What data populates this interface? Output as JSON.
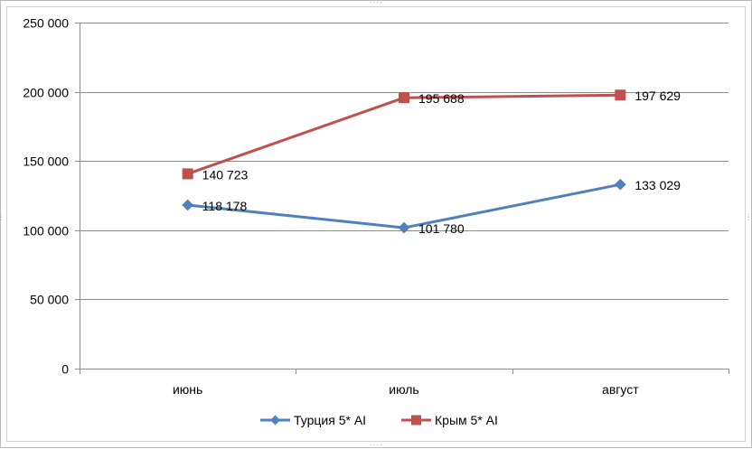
{
  "chart_data": {
    "type": "line",
    "categories": [
      "июнь",
      "июль",
      "август"
    ],
    "ylim": [
      0,
      250000
    ],
    "yticks": [
      0,
      50000,
      100000,
      150000,
      200000,
      250000
    ],
    "ytick_labels": [
      "0",
      "50 000",
      "100 000",
      "150 000",
      "200 000",
      "250 000"
    ],
    "grid": true,
    "legend_position": "bottom",
    "series": [
      {
        "name": "Турция 5* AI",
        "values": [
          118178,
          101780,
          133029
        ],
        "labels": [
          "118 178",
          "101 780",
          "133 029"
        ],
        "color": "#4f81bd",
        "marker": "diamond"
      },
      {
        "name": "Крым 5* AI",
        "values": [
          140723,
          195688,
          197629
        ],
        "labels": [
          "140 723",
          "195 688",
          "197 629"
        ],
        "color": "#c0504d",
        "marker": "square"
      }
    ]
  }
}
